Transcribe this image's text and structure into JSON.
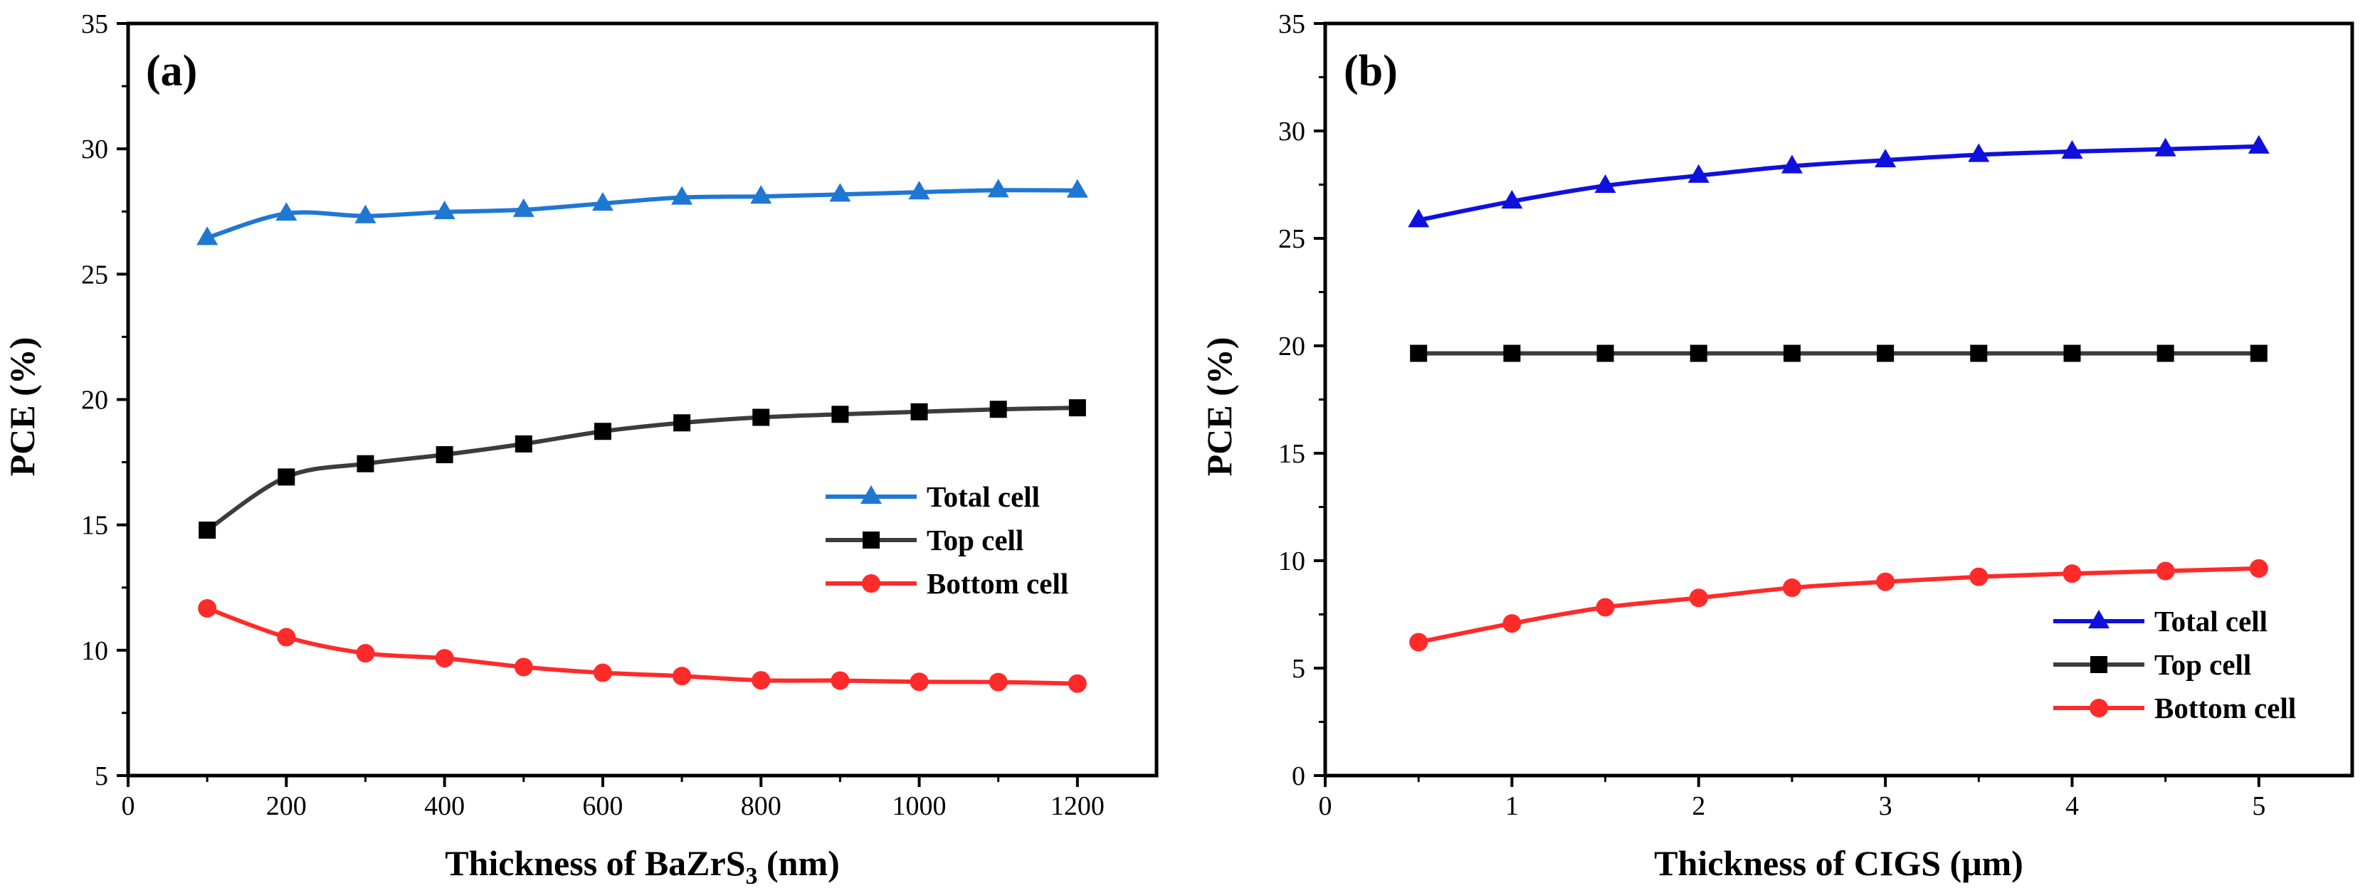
{
  "chart_data": [
    {
      "type": "line",
      "panel_label": "(a)",
      "title": "",
      "xlabel": "Thickness of BaZrS",
      "xlabel_sub": "3",
      "xlabel_tail": " (nm)",
      "ylabel": "PCE (%)",
      "xlim": [
        0,
        1300
      ],
      "ylim": [
        5,
        35
      ],
      "xticks": [
        0,
        200,
        400,
        600,
        800,
        1000,
        1200
      ],
      "yticks": [
        5,
        10,
        15,
        20,
        25,
        30,
        35
      ],
      "x": [
        100,
        200,
        300,
        400,
        500,
        600,
        700,
        800,
        900,
        1000,
        1100,
        1200
      ],
      "legend_position": "center-right",
      "series": [
        {
          "name": "Total cell",
          "color": "#1f77d4",
          "marker": "triangle",
          "values": [
            26.45,
            27.42,
            27.32,
            27.48,
            27.57,
            27.82,
            28.06,
            28.1,
            28.18,
            28.27,
            28.35,
            28.34
          ]
        },
        {
          "name": "Top cell",
          "color": "#3c3c3c",
          "marker": "square",
          "values": [
            14.79,
            16.91,
            17.44,
            17.8,
            18.23,
            18.73,
            19.07,
            19.29,
            19.41,
            19.51,
            19.61,
            19.67
          ]
        },
        {
          "name": "Bottom cell",
          "color": "#ff2a2a",
          "marker": "circle",
          "values": [
            11.67,
            10.52,
            9.88,
            9.68,
            9.33,
            9.1,
            8.97,
            8.8,
            8.79,
            8.74,
            8.73,
            8.67
          ]
        }
      ]
    },
    {
      "type": "line",
      "panel_label": "(b)",
      "title": "",
      "xlabel": "Thickness of  CIGS (μm)",
      "ylabel": "PCE (%)",
      "xlim": [
        0,
        5.5
      ],
      "ylim": [
        0,
        35
      ],
      "xticks": [
        0,
        1,
        2,
        3,
        4,
        5
      ],
      "yticks": [
        0,
        5,
        10,
        15,
        20,
        25,
        30,
        35
      ],
      "x": [
        0.5,
        1,
        1.5,
        2,
        2.5,
        3,
        3.5,
        4,
        4.5,
        5
      ],
      "legend_position": "lower-right",
      "series": [
        {
          "name": "Total cell",
          "color": "#1010dd",
          "marker": "triangle",
          "values": [
            25.85,
            26.72,
            27.45,
            27.92,
            28.36,
            28.64,
            28.89,
            29.04,
            29.15,
            29.28
          ]
        },
        {
          "name": "Top cell",
          "color": "#3c3c3c",
          "marker": "square",
          "values": [
            19.65,
            19.65,
            19.65,
            19.65,
            19.65,
            19.65,
            19.65,
            19.65,
            19.65,
            19.65
          ]
        },
        {
          "name": "Bottom cell",
          "color": "#ff2a2a",
          "marker": "circle",
          "values": [
            6.21,
            7.08,
            7.83,
            8.27,
            8.74,
            9.02,
            9.25,
            9.4,
            9.52,
            9.64
          ]
        }
      ]
    }
  ]
}
